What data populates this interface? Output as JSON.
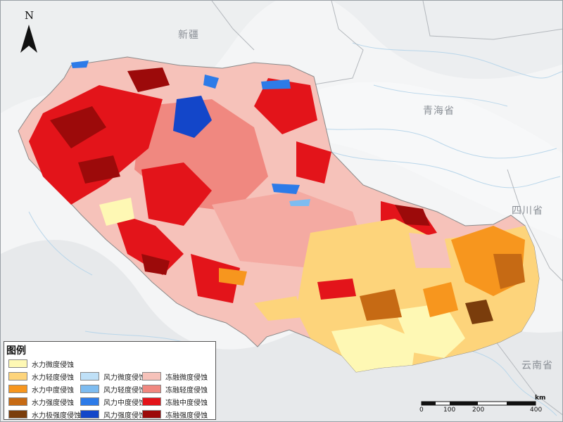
{
  "map": {
    "north_label": "N",
    "places": [
      {
        "name": "新疆"
      },
      {
        "name": "青海省"
      },
      {
        "name": "四川省"
      },
      {
        "name": "云南省"
      }
    ]
  },
  "legend": {
    "title": "图例",
    "items": [
      {
        "label": "水力微度侵蚀",
        "color": "#fef8b4"
      },
      {
        "label": "水力轻度侵蚀",
        "color": "#fdd47b"
      },
      {
        "label": "水力中度侵蚀",
        "color": "#f7961e"
      },
      {
        "label": "水力强度侵蚀",
        "color": "#c66a14"
      },
      {
        "label": "水力极强度侵蚀",
        "color": "#7a3d0c"
      },
      {
        "label": "风力微度侵蚀",
        "color": "#bfe0f7"
      },
      {
        "label": "风力轻度侵蚀",
        "color": "#7ebcf0"
      },
      {
        "label": "风力中度侵蚀",
        "color": "#2d7be8"
      },
      {
        "label": "风力强度侵蚀",
        "color": "#1346c9"
      },
      {
        "label": "冻融微度侵蚀",
        "color": "#f6c2ba"
      },
      {
        "label": "冻融轻度侵蚀",
        "color": "#f08880"
      },
      {
        "label": "冻融中度侵蚀",
        "color": "#e3141a"
      },
      {
        "label": "冻融强度侵蚀",
        "color": "#9c0a0a"
      }
    ]
  },
  "scale": {
    "ticks": [
      "0",
      "100",
      "200",
      "400"
    ],
    "unit": "km"
  }
}
